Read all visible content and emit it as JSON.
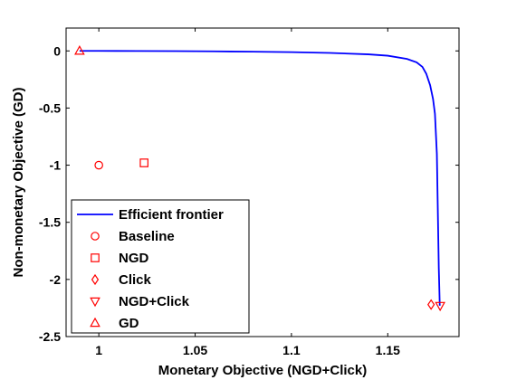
{
  "chart_data": {
    "type": "line",
    "xlabel": "Monetary Objective (NGD+Click)",
    "ylabel": "Non-monetary Objective (GD)",
    "xlim": [
      0.983,
      1.187
    ],
    "ylim": [
      -2.5,
      0.2
    ],
    "xticks": [
      1,
      1.05,
      1.1,
      1.15
    ],
    "xtick_labels": [
      "1",
      "1.05",
      "1.1",
      "1.15"
    ],
    "yticks": [
      0,
      -0.5,
      -1,
      -1.5,
      -2,
      -2.5
    ],
    "ytick_labels": [
      "0",
      "-0.5",
      "-1",
      "-1.5",
      "-2",
      "-2.5"
    ],
    "grid": false,
    "legend_position": "bottom-left",
    "series": [
      {
        "name": "Efficient frontier",
        "kind": "line",
        "color": "#0000ff",
        "x": [
          0.99,
          1.0,
          1.02,
          1.04,
          1.06,
          1.08,
          1.1,
          1.12,
          1.14,
          1.15,
          1.16,
          1.165,
          1.168,
          1.17,
          1.172,
          1.1735,
          1.1745,
          1.1755,
          1.176,
          1.1765,
          1.177
        ],
        "y": [
          0.0,
          0.0,
          -0.001,
          -0.002,
          -0.004,
          -0.007,
          -0.011,
          -0.018,
          -0.03,
          -0.042,
          -0.07,
          -0.1,
          -0.14,
          -0.2,
          -0.3,
          -0.42,
          -0.55,
          -0.9,
          -1.4,
          -1.9,
          -2.23
        ]
      },
      {
        "name": "Baseline",
        "kind": "marker",
        "marker": "circle",
        "color": "#ff0000",
        "x": [
          1.0
        ],
        "y": [
          -1.0
        ]
      },
      {
        "name": "NGD",
        "kind": "marker",
        "marker": "square",
        "color": "#ff0000",
        "x": [
          1.0235
        ],
        "y": [
          -0.98
        ]
      },
      {
        "name": "Click",
        "kind": "marker",
        "marker": "diamond",
        "color": "#ff0000",
        "x": [
          1.1725
        ],
        "y": [
          -2.22
        ]
      },
      {
        "name": "NGD+Click",
        "kind": "marker",
        "marker": "triangle-down",
        "color": "#ff0000",
        "x": [
          1.1772
        ],
        "y": [
          -2.23
        ]
      },
      {
        "name": "GD",
        "kind": "marker",
        "marker": "triangle-up",
        "color": "#ff0000",
        "x": [
          0.99
        ],
        "y": [
          0.0
        ]
      }
    ]
  }
}
